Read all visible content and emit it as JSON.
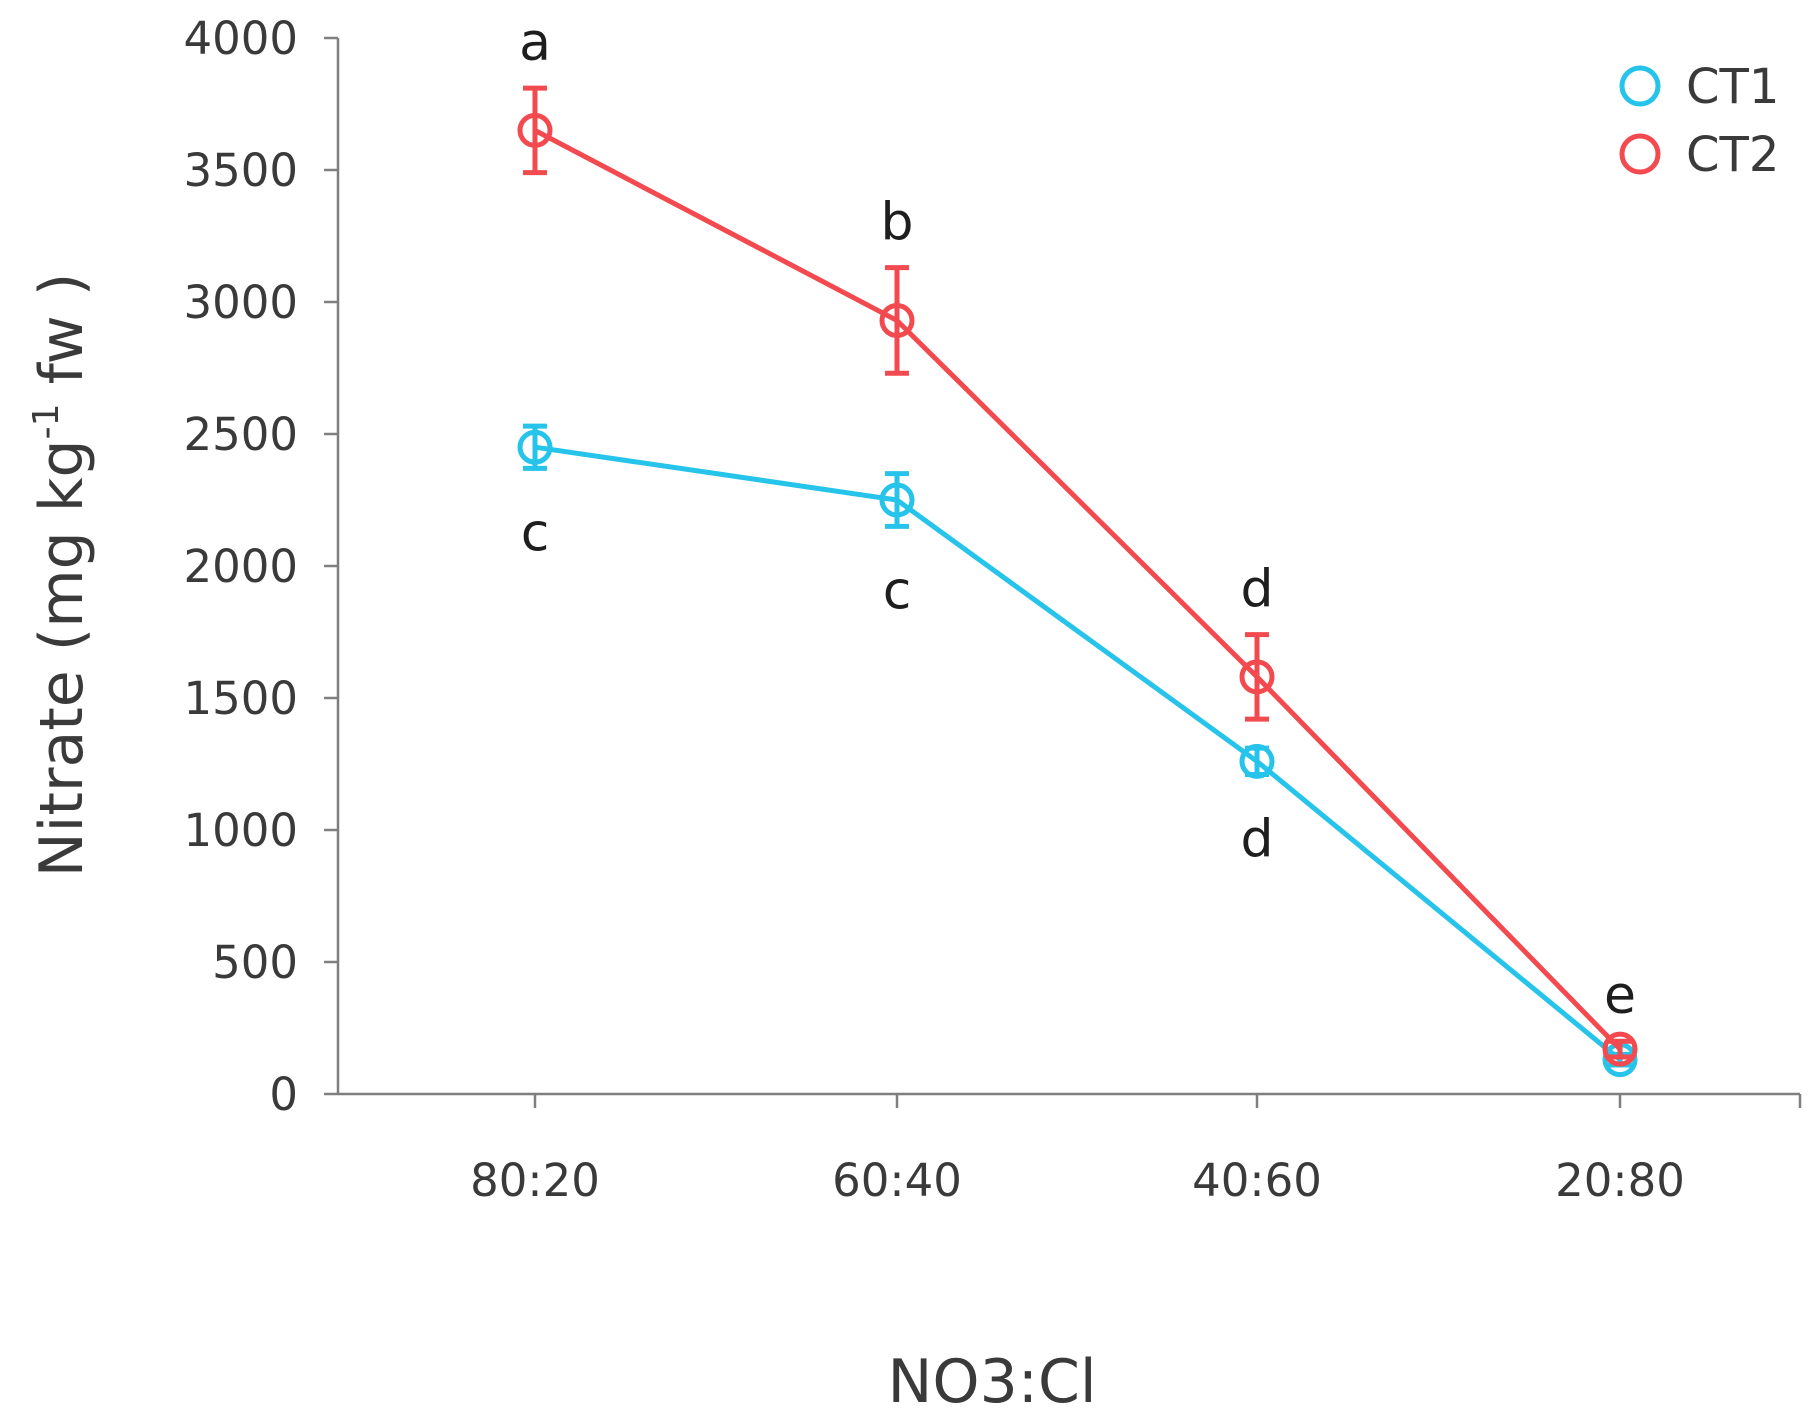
{
  "chart_data": {
    "type": "line",
    "title": "",
    "xlabel": "NO3:Cl",
    "ylabel": {
      "main": "Nitrate (mg kg",
      "sup": "-1",
      "tail": " fw )"
    },
    "categories": [
      "80:20",
      "60:40",
      "40:60",
      "20:80"
    ],
    "ylim": [
      0,
      4000
    ],
    "yticks": [
      0,
      500,
      1000,
      1500,
      2000,
      2500,
      3000,
      3500,
      4000
    ],
    "grid": false,
    "legend_position": "top-right",
    "series": [
      {
        "name": "CT1",
        "color": "#26c3ea",
        "values": [
          2450,
          2250,
          1260,
          130
        ],
        "errors": [
          80,
          100,
          50,
          20
        ],
        "letters": [
          "c",
          "c",
          "d",
          ""
        ],
        "letter_side": "below"
      },
      {
        "name": "CT2",
        "color": "#f24a4f",
        "values": [
          3650,
          2930,
          1580,
          170
        ],
        "errors": [
          160,
          200,
          160,
          30
        ],
        "letters": [
          "a",
          "b",
          "d",
          "e"
        ],
        "letter_side": "above"
      }
    ]
  }
}
